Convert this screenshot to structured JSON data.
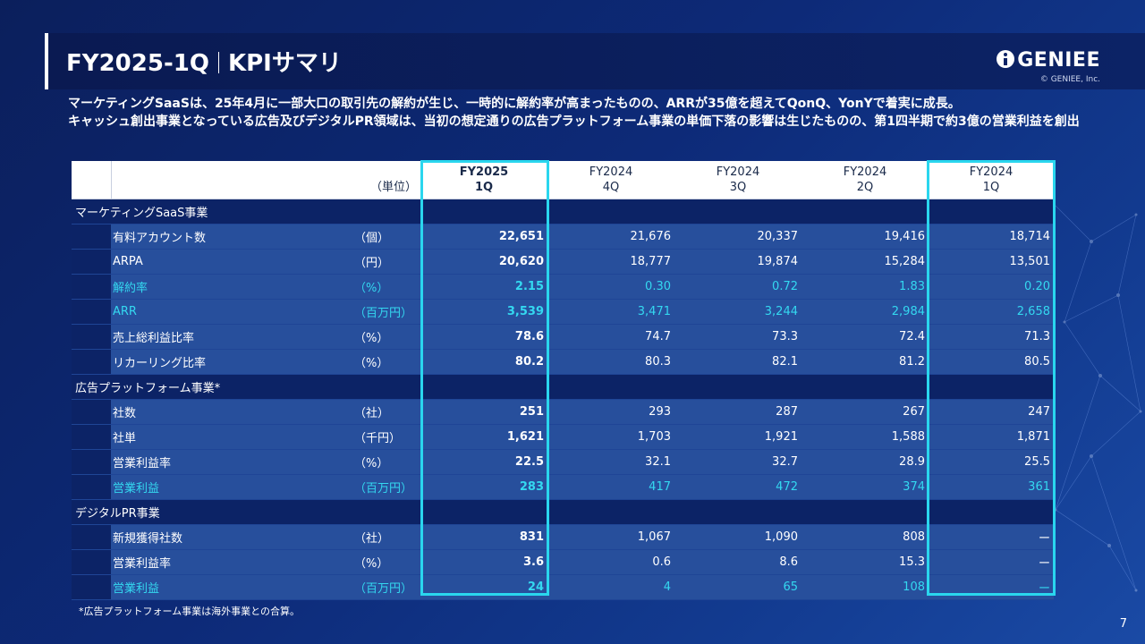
{
  "slide": {
    "title_main": "FY2025-1Q",
    "title_sub": "KPIサマリ",
    "logo_text": "GENIEE",
    "copyright": "© GENIEE, Inc.",
    "page_number": "7"
  },
  "summary": {
    "line1": "マーケティングSaaSは、25年4月に一部大口の取引先の解約が生じ、一時的に解約率が高まったものの、ARRが35億を超えてQonQ、YonYで着実に成長。",
    "line2": "キャッシュ創出事業となっている広告及びデジタルPR領域は、当初の想定通りの広告プラットフォーム事業の単価下落の影響は生じたものの、第1四半期で約3億の営業利益を創出"
  },
  "table": {
    "unit_header": "（単位）",
    "periods": [
      {
        "fy": "FY2025",
        "q": "1Q"
      },
      {
        "fy": "FY2024",
        "q": "4Q"
      },
      {
        "fy": "FY2024",
        "q": "3Q"
      },
      {
        "fy": "FY2024",
        "q": "2Q"
      },
      {
        "fy": "FY2024",
        "q": "1Q"
      }
    ],
    "sections": [
      {
        "name": "マーケティングSaaS事業",
        "rows": [
          {
            "label": "有料アカウント数",
            "unit": "（個）",
            "values": [
              "22,651",
              "21,676",
              "20,337",
              "19,416",
              "18,714"
            ],
            "highlight": false
          },
          {
            "label": "ARPA",
            "unit": "（円）",
            "values": [
              "20,620",
              "18,777",
              "19,874",
              "15,284",
              "13,501"
            ],
            "highlight": false
          },
          {
            "label": "解約率",
            "unit": "（%）",
            "values": [
              "2.15",
              "0.30",
              "0.72",
              "1.83",
              "0.20"
            ],
            "highlight": true
          },
          {
            "label": "ARR",
            "unit": "（百万円）",
            "values": [
              "3,539",
              "3,471",
              "3,244",
              "2,984",
              "2,658"
            ],
            "highlight": true
          },
          {
            "label": "売上総利益比率",
            "unit": "（%）",
            "values": [
              "78.6",
              "74.7",
              "73.3",
              "72.4",
              "71.3"
            ],
            "highlight": false
          },
          {
            "label": "リカーリング比率",
            "unit": "（%）",
            "values": [
              "80.2",
              "80.3",
              "82.1",
              "81.2",
              "80.5"
            ],
            "highlight": false
          }
        ]
      },
      {
        "name": "広告プラットフォーム事業*",
        "rows": [
          {
            "label": "社数",
            "unit": "（社）",
            "values": [
              "251",
              "293",
              "287",
              "267",
              "247"
            ],
            "highlight": false
          },
          {
            "label": "社単",
            "unit": "（千円）",
            "values": [
              "1,621",
              "1,703",
              "1,921",
              "1,588",
              "1,871"
            ],
            "highlight": false
          },
          {
            "label": "営業利益率",
            "unit": "（%）",
            "values": [
              "22.5",
              "32.1",
              "32.7",
              "28.9",
              "25.5"
            ],
            "highlight": false
          },
          {
            "label": "営業利益",
            "unit": "（百万円）",
            "values": [
              "283",
              "417",
              "472",
              "374",
              "361"
            ],
            "highlight": true
          }
        ]
      },
      {
        "name": "デジタルPR事業",
        "rows": [
          {
            "label": "新規獲得社数",
            "unit": "（社）",
            "values": [
              "831",
              "1,067",
              "1,090",
              "808",
              "ー"
            ],
            "highlight": false
          },
          {
            "label": "営業利益率",
            "unit": "（%）",
            "values": [
              "3.6",
              "0.6",
              "8.6",
              "15.3",
              "ー"
            ],
            "highlight": false
          },
          {
            "label": "営業利益",
            "unit": "（百万円）",
            "values": [
              "24",
              "4",
              "65",
              "108",
              "ー"
            ],
            "highlight": true
          }
        ]
      }
    ]
  },
  "footnote": "*広告プラットフォーム事業は海外事業との合算。",
  "colors": {
    "background": "#0d2a78",
    "row": "#274f9c",
    "section": "#0c2366",
    "highlight": "#34d8f0",
    "box": "#2ad6ee"
  }
}
